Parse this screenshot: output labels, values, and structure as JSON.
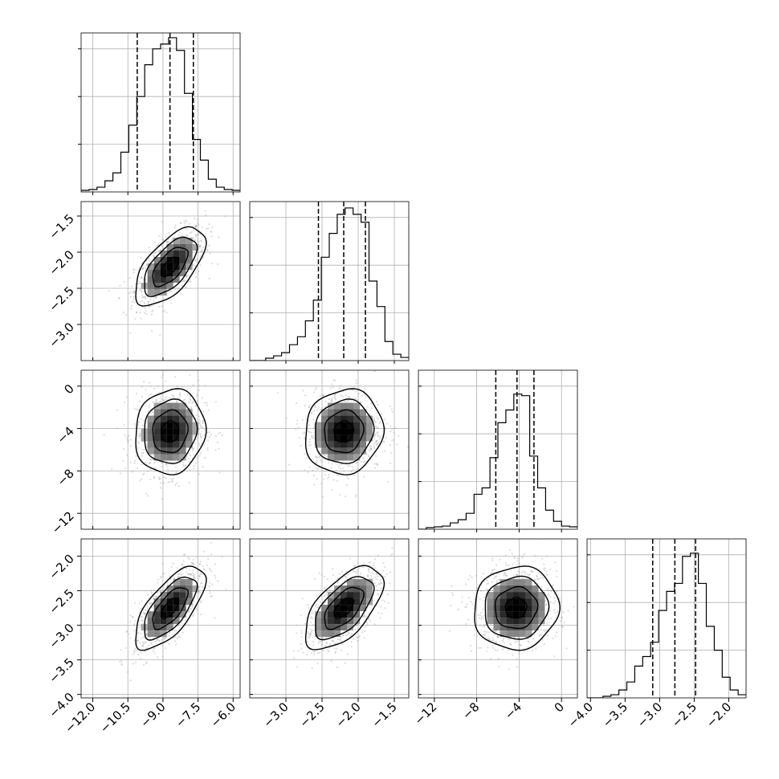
{
  "chart_data": {
    "type": "corner",
    "n_params": 4,
    "grid": true,
    "params": [
      {
        "range": [
          -12.5,
          -5.7
        ],
        "x_ticks": [
          -12.0,
          -10.5,
          -9.0,
          -7.5,
          -6.0
        ],
        "x_tick_labels": [
          "−12.0",
          "−10.5",
          "−9.0",
          "−7.5",
          "−6.0"
        ],
        "y_ticks": [],
        "y_tick_labels": []
      },
      {
        "range": [
          -3.5,
          -1.3
        ],
        "x_ticks": [
          -3.0,
          -2.5,
          -2.0,
          -1.5
        ],
        "x_tick_labels": [
          "−3.0",
          "−2.5",
          "−2.0",
          "−1.5"
        ],
        "y_ticks": [
          -1.5,
          -2.0,
          -2.5,
          -3.0
        ],
        "y_tick_labels": [
          "−1.5",
          "−2.0",
          "−2.5",
          "−3.0"
        ]
      },
      {
        "range": [
          -13.5,
          1.5
        ],
        "x_ticks": [
          -12,
          -8,
          -4,
          0
        ],
        "x_tick_labels": [
          "−12",
          "−8",
          "−4",
          "0"
        ],
        "y_ticks": [
          0,
          -4,
          -8,
          -12
        ],
        "y_tick_labels": [
          "0",
          "−4",
          "−8",
          "−12"
        ]
      },
      {
        "range": [
          -4.05,
          -1.75
        ],
        "x_ticks": [
          -4.0,
          -3.5,
          -3.0,
          -2.5,
          -2.0
        ],
        "x_tick_labels": [
          "−4.0",
          "−3.5",
          "−3.0",
          "−2.5",
          "−2.0"
        ],
        "y_ticks": [
          -2.0,
          -2.5,
          -3.0,
          -3.5,
          -4.0
        ],
        "y_tick_labels": [
          "−2.0",
          "−2.5",
          "−3.0",
          "−3.5",
          "−4.0"
        ]
      }
    ],
    "histograms": [
      {
        "bin_edges": [
          -12.5,
          -12.16,
          -11.82,
          -11.48,
          -11.14,
          -10.8,
          -10.46,
          -10.12,
          -9.78,
          -9.44,
          -9.1,
          -8.76,
          -8.42,
          -8.08,
          -7.74,
          -7.4,
          -7.06,
          -6.72,
          -6.38,
          -6.04,
          -5.7
        ],
        "counts": [
          0.01,
          0.015,
          0.03,
          0.07,
          0.12,
          0.25,
          0.42,
          0.6,
          0.8,
          0.9,
          0.93,
          0.97,
          0.89,
          0.62,
          0.33,
          0.2,
          0.08,
          0.03,
          0.015,
          0.01
        ],
        "quantiles": [
          -10.1,
          -8.7,
          -7.7
        ]
      },
      {
        "bin_edges": [
          -3.5,
          -3.39,
          -3.28,
          -3.17,
          -3.06,
          -2.95,
          -2.84,
          -2.73,
          -2.62,
          -2.51,
          -2.4,
          -2.29,
          -2.18,
          -2.07,
          -1.96,
          -1.85,
          -1.74,
          -1.63,
          -1.52,
          -1.41,
          -1.3
        ],
        "counts": [
          0.0,
          0.0,
          0.015,
          0.03,
          0.05,
          0.1,
          0.15,
          0.25,
          0.38,
          0.65,
          0.8,
          0.92,
          0.96,
          0.92,
          0.87,
          0.5,
          0.34,
          0.12,
          0.04,
          0.02
        ],
        "quantiles": [
          -2.55,
          -2.2,
          -1.9
        ]
      },
      {
        "bin_edges": [
          -13.5,
          -12.75,
          -12.0,
          -11.25,
          -10.5,
          -9.75,
          -9.0,
          -8.25,
          -7.5,
          -6.75,
          -6.0,
          -5.25,
          -4.5,
          -3.75,
          -3.0,
          -2.25,
          -1.5,
          -0.75,
          0.0,
          0.75,
          1.5
        ],
        "counts": [
          0.0,
          0.01,
          0.015,
          0.02,
          0.04,
          0.06,
          0.1,
          0.22,
          0.26,
          0.45,
          0.67,
          0.75,
          0.85,
          0.84,
          0.46,
          0.26,
          0.12,
          0.05,
          0.02,
          0.015
        ],
        "quantiles": [
          -6.2,
          -4.2,
          -2.6
        ]
      },
      {
        "bin_edges": [
          -4.05,
          -3.935,
          -3.82,
          -3.705,
          -3.59,
          -3.475,
          -3.36,
          -3.245,
          -3.13,
          -3.015,
          -2.9,
          -2.785,
          -2.67,
          -2.555,
          -2.44,
          -2.325,
          -2.21,
          -2.095,
          -1.98,
          -1.865,
          -1.75
        ],
        "counts": [
          0.0,
          0.0,
          0.01,
          0.02,
          0.05,
          0.1,
          0.2,
          0.26,
          0.35,
          0.55,
          0.67,
          0.72,
          0.89,
          0.91,
          0.72,
          0.45,
          0.3,
          0.13,
          0.05,
          0.02
        ],
        "quantiles": [
          -3.1,
          -2.78,
          -2.48
        ]
      }
    ],
    "pairs": [
      {
        "row": 1,
        "col": 0,
        "mean": [
          -8.7,
          -2.2
        ],
        "sigma": [
          0.75,
          0.27
        ],
        "corr": 0.62
      },
      {
        "row": 2,
        "col": 0,
        "mean": [
          -8.7,
          -4.3
        ],
        "sigma": [
          0.75,
          2.0
        ],
        "corr": 0.08
      },
      {
        "row": 2,
        "col": 1,
        "mean": [
          -2.2,
          -4.3
        ],
        "sigma": [
          0.27,
          2.0
        ],
        "corr": 0.08
      },
      {
        "row": 3,
        "col": 0,
        "mean": [
          -8.7,
          -2.75
        ],
        "sigma": [
          0.75,
          0.3
        ],
        "corr": 0.68
      },
      {
        "row": 3,
        "col": 1,
        "mean": [
          -2.2,
          -2.75
        ],
        "sigma": [
          0.27,
          0.3
        ],
        "corr": 0.6
      },
      {
        "row": 3,
        "col": 2,
        "mean": [
          -4.3,
          -2.75
        ],
        "sigma": [
          2.0,
          0.3
        ],
        "corr": 0.05
      }
    ],
    "contour_levels_sigma": [
      0.5,
      1.0,
      1.5,
      2.0
    ]
  }
}
